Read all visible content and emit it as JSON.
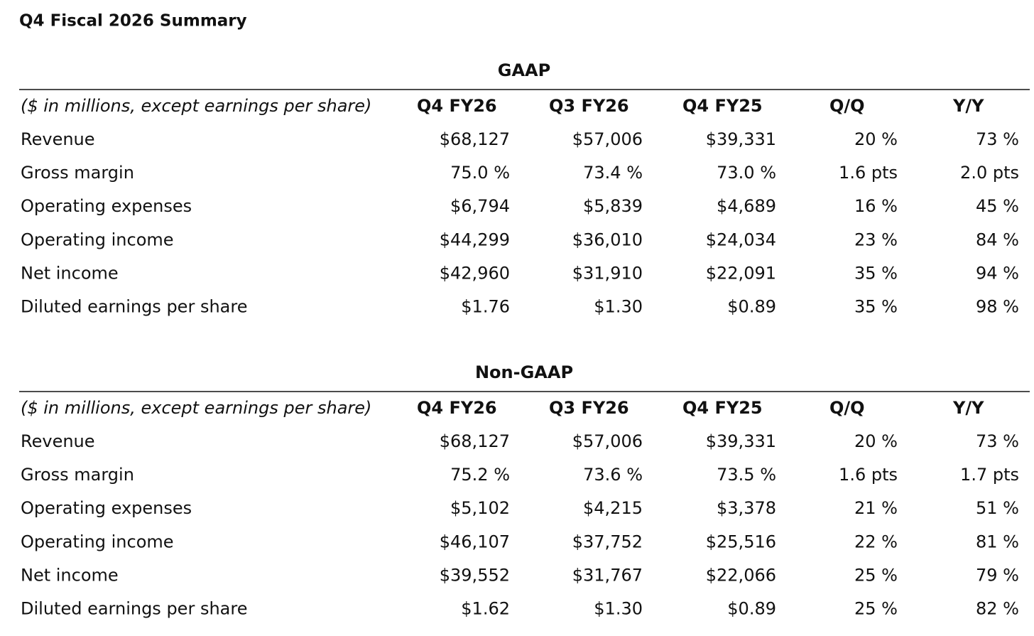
{
  "title": "Q4 Fiscal 2026 Summary",
  "tables": [
    {
      "heading": "GAAP",
      "columns": [
        "($ in millions, except earnings per share)",
        "Q4 FY26",
        "Q3 FY26",
        "Q4 FY25",
        "Q/Q",
        "Y/Y"
      ],
      "rows": [
        [
          "Revenue",
          "$68,127",
          "$57,006",
          "$39,331",
          "20 %",
          "73 %"
        ],
        [
          "Gross margin",
          "75.0 %",
          "73.4 %",
          "73.0 %",
          "1.6 pts",
          "2.0 pts"
        ],
        [
          "Operating expenses",
          "$6,794",
          "$5,839",
          "$4,689",
          "16 %",
          "45 %"
        ],
        [
          "Operating income",
          "$44,299",
          "$36,010",
          "$24,034",
          "23 %",
          "84 %"
        ],
        [
          "Net income",
          "$42,960",
          "$31,910",
          "$22,091",
          "35 %",
          "94 %"
        ],
        [
          "Diluted earnings per share",
          "$1.76",
          "$1.30",
          "$0.89",
          "35 %",
          "98 %"
        ]
      ]
    },
    {
      "heading": "Non-GAAP",
      "columns": [
        "($ in millions, except earnings per share)",
        "Q4 FY26",
        "Q3 FY26",
        "Q4 FY25",
        "Q/Q",
        "Y/Y"
      ],
      "rows": [
        [
          "Revenue",
          "$68,127",
          "$57,006",
          "$39,331",
          "20 %",
          "73 %"
        ],
        [
          "Gross margin",
          "75.2 %",
          "73.6 %",
          "73.5 %",
          "1.6 pts",
          "1.7 pts"
        ],
        [
          "Operating expenses",
          "$5,102",
          "$4,215",
          "$3,378",
          "21 %",
          "51 %"
        ],
        [
          "Operating income",
          "$46,107",
          "$37,752",
          "$25,516",
          "22 %",
          "81 %"
        ],
        [
          "Net income",
          "$39,552",
          "$31,767",
          "$22,066",
          "25 %",
          "79 %"
        ],
        [
          "Diluted earnings per share",
          "$1.62",
          "$1.30",
          "$0.89",
          "25 %",
          "82 %"
        ]
      ]
    }
  ]
}
